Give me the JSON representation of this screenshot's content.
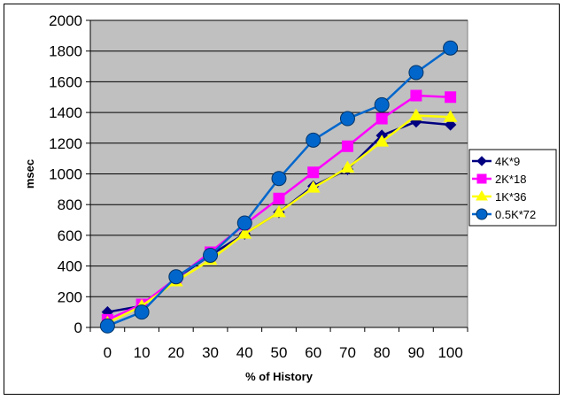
{
  "chart_data": {
    "type": "line",
    "title": "",
    "xlabel": "% of History",
    "ylabel": "msec",
    "categories": [
      "0",
      "10",
      "20",
      "30",
      "40",
      "50",
      "60",
      "70",
      "80",
      "90",
      "100"
    ],
    "x": [
      0,
      10,
      20,
      30,
      40,
      50,
      60,
      70,
      80,
      90,
      100
    ],
    "ylim": [
      0,
      2000
    ],
    "yticks": [
      0,
      200,
      400,
      600,
      800,
      1000,
      1200,
      1400,
      1600,
      1800,
      2000
    ],
    "grid": "horizontal",
    "legend_position": "right",
    "plot_background": "#c0c0c0",
    "series": [
      {
        "name": "4K*9",
        "marker": "diamond",
        "color": "#000080",
        "values": [
          100,
          140,
          320,
          470,
          610,
          750,
          920,
          1030,
          1250,
          1340,
          1320
        ]
      },
      {
        "name": "2K*18",
        "marker": "square",
        "color": "#ff00ff",
        "values": [
          50,
          150,
          320,
          490,
          670,
          840,
          1010,
          1180,
          1360,
          1510,
          1500
        ]
      },
      {
        "name": "1K*36",
        "marker": "triangle",
        "color": "#ffff00",
        "values": [
          30,
          140,
          300,
          440,
          610,
          750,
          910,
          1040,
          1210,
          1380,
          1370
        ]
      },
      {
        "name": "0.5K*72",
        "marker": "circle",
        "color": "#0066cc",
        "values": [
          10,
          100,
          330,
          470,
          680,
          970,
          1220,
          1360,
          1450,
          1660,
          1820
        ]
      }
    ]
  }
}
